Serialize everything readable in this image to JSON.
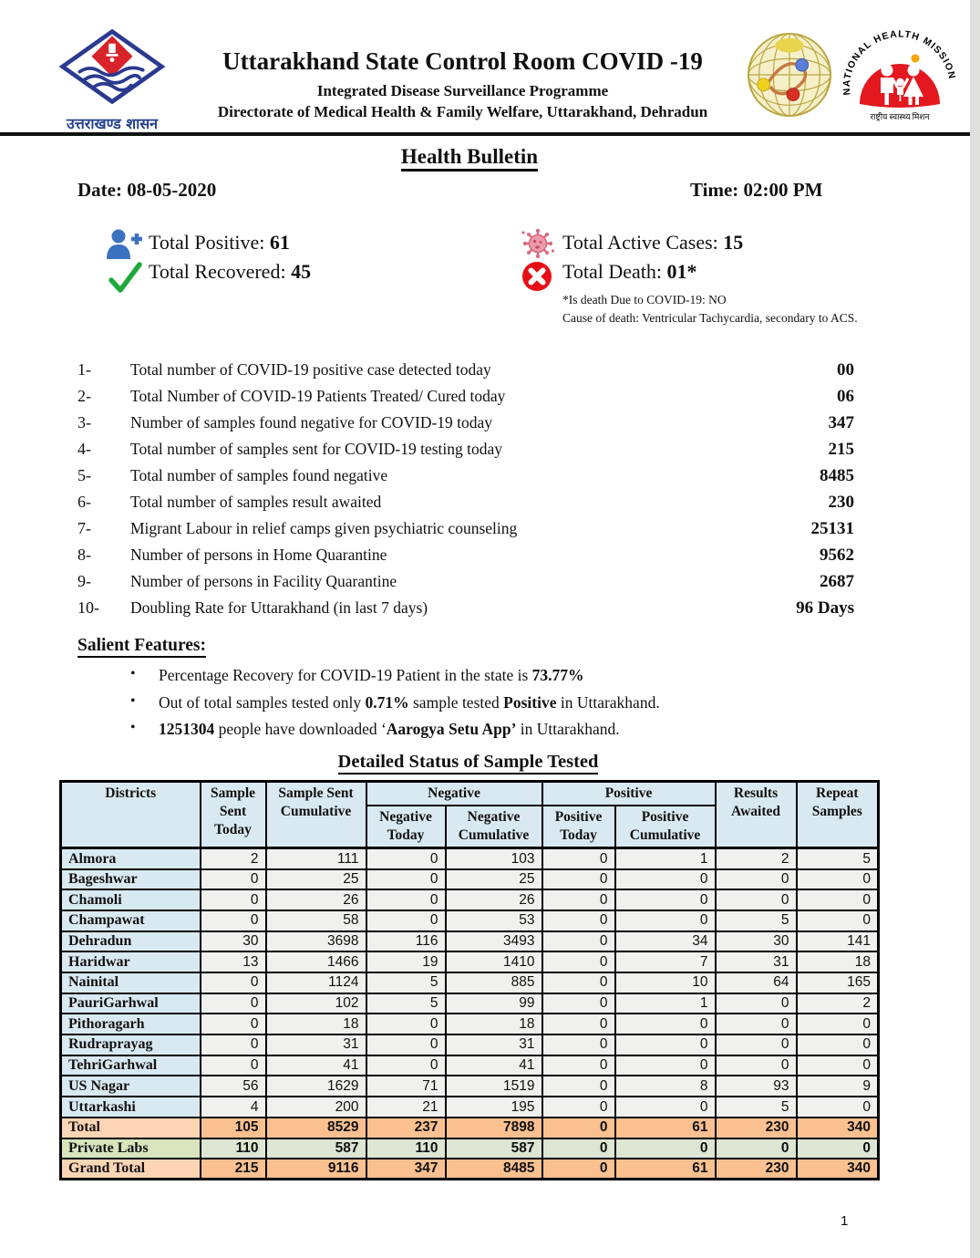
{
  "header": {
    "title": "Uttarakhand State Control Room COVID -19",
    "subtitle1": "Integrated Disease Surveillance Programme",
    "subtitle2": "Directorate of Medical Health & Family Welfare, Uttarakhand, Dehradun",
    "left_logo_caption": "उत्तराखण्ड शासन",
    "nhm_text_arc": "NATIONAL HEALTH MISSION",
    "nhm_text_bottom": "राष्ट्रीय स्वास्थ्य मिशन"
  },
  "bulletin": {
    "heading": "Health Bulletin",
    "date_label": "Date: 08-05-2020",
    "time_label": "Time: 02:00 PM"
  },
  "stats": {
    "total_positive_label": "Total Positive: ",
    "total_positive_value": "61",
    "total_recovered_label": "Total Recovered: ",
    "total_recovered_value": "45",
    "total_active_label": "Total Active Cases: ",
    "total_active_value": "15",
    "total_death_label": "Total Death: ",
    "total_death_value": "01*",
    "death_note_line1": "*Is death Due to COVID-19: NO",
    "death_note_line2": "Cause of death: Ventricular Tachycardia, secondary to ACS.",
    "icons": {
      "positive": "person-plus-icon",
      "recovered": "check-icon",
      "active": "virus-icon",
      "death": "cross-circle-icon"
    }
  },
  "summary_list": [
    {
      "num": "1-",
      "label": "Total number of COVID-19 positive case detected today",
      "value": "00"
    },
    {
      "num": "2-",
      "label": "Total Number of COVID-19 Patients Treated/ Cured today",
      "value": "06"
    },
    {
      "num": "3-",
      "label": "Number of samples found negative for COVID-19 today",
      "value": "347"
    },
    {
      "num": "4-",
      "label": "Total number of samples sent for COVID-19 testing today",
      "value": "215"
    },
    {
      "num": "5-",
      "label": "Total number of samples found negative",
      "value": "8485"
    },
    {
      "num": "6-",
      "label": "Total number of samples result awaited",
      "value": "230"
    },
    {
      "num": "7-",
      "label": "Migrant Labour in relief camps given psychiatric counseling",
      "value": "25131"
    },
    {
      "num": "8-",
      "label": "Number of persons in Home Quarantine",
      "value": "9562"
    },
    {
      "num": "9-",
      "label": "Number of persons in Facility Quarantine",
      "value": "2687"
    },
    {
      "num": "10-",
      "label": "Doubling Rate for Uttarakhand (in last 7 days)",
      "value": "96 Days"
    }
  ],
  "salient": {
    "heading": "Salient Features:",
    "bullets": [
      {
        "segments": [
          {
            "text": "Percentage Recovery for COVID-19 Patient in the state is ",
            "bold": false
          },
          {
            "text": "73.77%",
            "bold": true
          }
        ]
      },
      {
        "segments": [
          {
            "text": "Out of total samples tested only ",
            "bold": false
          },
          {
            "text": "0.71%",
            "bold": true
          },
          {
            "text": " sample tested ",
            "bold": false
          },
          {
            "text": "Positive",
            "bold": true
          },
          {
            "text": " in Uttarakhand.",
            "bold": false
          }
        ]
      },
      {
        "segments": [
          {
            "text": "1251304",
            "bold": true
          },
          {
            "text": " people have downloaded ‘",
            "bold": false
          },
          {
            "text": "Aarogya Setu App’",
            "bold": true
          },
          {
            "text": " in Uttarakhand.",
            "bold": false
          }
        ]
      }
    ]
  },
  "table": {
    "title": "Detailed Status of Sample Tested",
    "col_districts": "Districts",
    "col_sample_sent_today": "Sample Sent Today",
    "col_sample_sent_cumulative": "Sample Sent Cumulative",
    "group_negative": "Negative",
    "group_positive": "Positive",
    "col_negative_today": "Negative Today",
    "col_negative_cumulative": "Negative Cumulative",
    "col_positive_today": "Positive Today",
    "col_positive_cumulative": "Positive Cumulative",
    "col_results_awaited": "Results Awaited",
    "col_repeat_samples": "Repeat Samples",
    "rows": [
      {
        "district": "Almora",
        "values": [
          2,
          111,
          0,
          103,
          0,
          1,
          2,
          5
        ]
      },
      {
        "district": "Bageshwar",
        "values": [
          0,
          25,
          0,
          25,
          0,
          0,
          0,
          0
        ]
      },
      {
        "district": "Chamoli",
        "values": [
          0,
          26,
          0,
          26,
          0,
          0,
          0,
          0
        ]
      },
      {
        "district": "Champawat",
        "values": [
          0,
          58,
          0,
          53,
          0,
          0,
          5,
          0
        ]
      },
      {
        "district": "Dehradun",
        "values": [
          30,
          3698,
          116,
          3493,
          0,
          34,
          30,
          141
        ]
      },
      {
        "district": "Haridwar",
        "values": [
          13,
          1466,
          19,
          1410,
          0,
          7,
          31,
          18
        ]
      },
      {
        "district": "Nainital",
        "values": [
          0,
          1124,
          5,
          885,
          0,
          10,
          64,
          165
        ]
      },
      {
        "district": "PauriGarhwal",
        "values": [
          0,
          102,
          5,
          99,
          0,
          1,
          0,
          2
        ]
      },
      {
        "district": "Pithoragarh",
        "values": [
          0,
          18,
          0,
          18,
          0,
          0,
          0,
          0
        ]
      },
      {
        "district": "Rudraprayag",
        "values": [
          0,
          31,
          0,
          31,
          0,
          0,
          0,
          0
        ]
      },
      {
        "district": "TehriGarhwal",
        "values": [
          0,
          41,
          0,
          41,
          0,
          0,
          0,
          0
        ]
      },
      {
        "district": "US Nagar",
        "values": [
          56,
          1629,
          71,
          1519,
          0,
          8,
          93,
          9
        ]
      },
      {
        "district": "Uttarkashi",
        "values": [
          4,
          200,
          21,
          195,
          0,
          0,
          5,
          0
        ]
      }
    ],
    "summary_rows": [
      {
        "district": "Total",
        "values": [
          105,
          8529,
          237,
          7898,
          0,
          61,
          230,
          340
        ],
        "style": "total"
      },
      {
        "district": "Private Labs",
        "values": [
          110,
          587,
          110,
          587,
          0,
          0,
          0,
          0
        ],
        "style": "private"
      },
      {
        "district": "Grand Total",
        "values": [
          215,
          9116,
          347,
          8485,
          0,
          61,
          230,
          340
        ],
        "style": "total"
      }
    ]
  },
  "page_number": "1",
  "colors": {
    "header_cell_blue": "#D9E9F2",
    "negative_green": "#D7E4BC",
    "positive_orange": "#FBD4B4",
    "total_row_orange": "#FAC090",
    "total_label_orange": "#FCD5B4",
    "private_row_green": "#DCE6D2",
    "data_cell_grey": "#F0F0EF",
    "positive_icon_blue": "#3A72C0",
    "recovered_icon_green": "#1FA93C",
    "active_icon_pink": "#D96B7F",
    "death_icon_red": "#E60F16",
    "uk_logo_blue": "#2B3990",
    "uk_logo_red": "#D8232A",
    "nhm_red": "#E4181F"
  }
}
